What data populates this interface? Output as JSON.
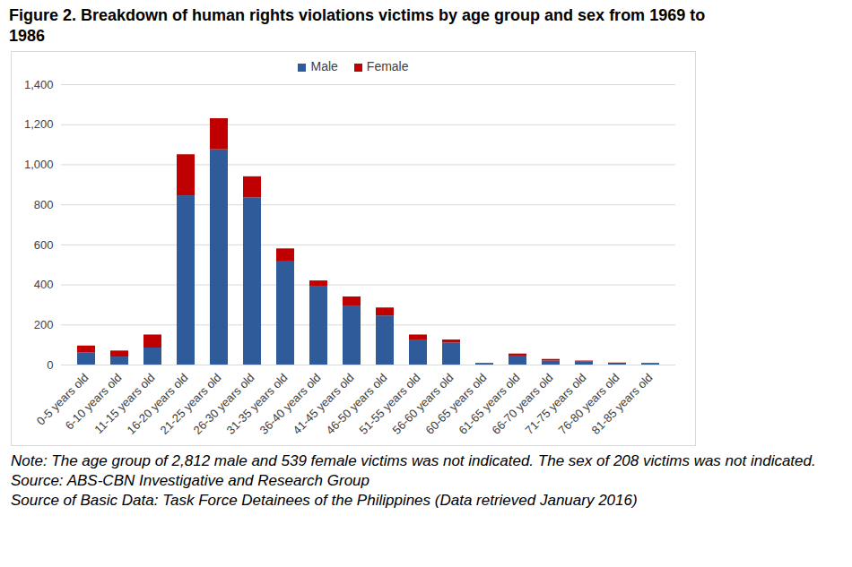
{
  "chart_data": {
    "type": "bar",
    "title": "Figure 2. Breakdown of human rights violations victims by age group and sex from 1969 to 1986",
    "categories": [
      "0-5 years old",
      "6-10 years old",
      "11-15 years old",
      "16-20 years old",
      "21-25 years old",
      "26-30 years old",
      "31-35 years old",
      "36-40 years old",
      "41-45 years old",
      "46-50 years old",
      "51-55 years old",
      "56-60 years old",
      "60-65 years old",
      "61-65 years old",
      "66-70 years old",
      "71-75 years old",
      "76-80 years old",
      "81-85 years old"
    ],
    "series": [
      {
        "name": "Male",
        "color": "#2f5b9a",
        "values": [
          60,
          40,
          85,
          845,
          1075,
          835,
          515,
          390,
          295,
          245,
          125,
          110,
          8,
          45,
          20,
          15,
          5,
          8
        ]
      },
      {
        "name": "Female",
        "color": "#c00000",
        "values": [
          35,
          30,
          65,
          205,
          155,
          105,
          65,
          30,
          45,
          40,
          25,
          15,
          1,
          10,
          8,
          5,
          5,
          1
        ]
      }
    ],
    "stacked": true,
    "ylim": [
      0,
      1400
    ],
    "yticks": [
      0,
      200,
      400,
      600,
      800,
      {
        "value": 1000,
        "label": "1,000"
      },
      {
        "value": 1200,
        "label": "1,200"
      },
      {
        "value": 1400,
        "label": "1,400"
      }
    ],
    "grid": true,
    "legend": "top",
    "notes": [
      "Note: The age group of 2,812 male and 539 female victims was not indicated. The sex of 208 victims was not indicated.",
      "Source: ABS-CBN Investigative and Research Group",
      "Source of Basic Data: Task Force Detainees of the Philippines (Data retrieved January 2016)"
    ]
  }
}
